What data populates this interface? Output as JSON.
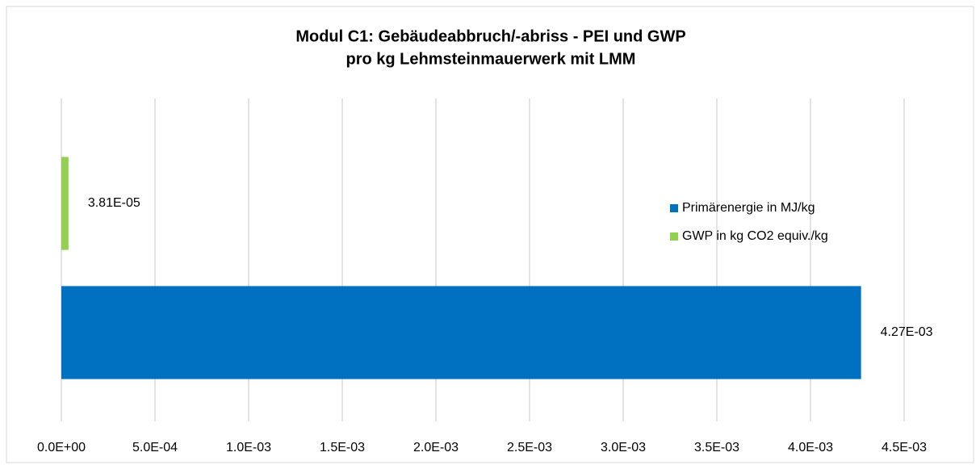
{
  "chart_data": {
    "type": "bar",
    "orientation": "horizontal",
    "title": [
      "Modul C1: Gebäudeabbruch/-abriss - PEI und GWP",
      "pro kg Lehmsteinmauerwerk mit LMM"
    ],
    "categories": [
      null
    ],
    "series": [
      {
        "name": "Primärenergie in MJ/kg",
        "color": "#0070c0",
        "values": [
          0.00427
        ],
        "value_labels": [
          "4.27E-03"
        ]
      },
      {
        "name": "GWP in kg CO2 equiv./kg",
        "color": "#92d050",
        "values": [
          3.81e-05
        ],
        "value_labels": [
          "3.81E-05"
        ]
      }
    ],
    "xlim": [
      0,
      0.0045
    ],
    "xticks": [
      {
        "value": 0,
        "label": "0.0E+00"
      },
      {
        "value": 0.0005,
        "label": "5.0E-04"
      },
      {
        "value": 0.001,
        "label": "1.0E-03"
      },
      {
        "value": 0.0015,
        "label": "1.5E-03"
      },
      {
        "value": 0.002,
        "label": "2.0E-03"
      },
      {
        "value": 0.0025,
        "label": "2.5E-03"
      },
      {
        "value": 0.003,
        "label": "3.0E-03"
      },
      {
        "value": 0.0035,
        "label": "3.5E-03"
      },
      {
        "value": 0.004,
        "label": "4.0E-03"
      },
      {
        "value": 0.0045,
        "label": "4.5E-03"
      }
    ],
    "grid": true,
    "legend": "right"
  }
}
